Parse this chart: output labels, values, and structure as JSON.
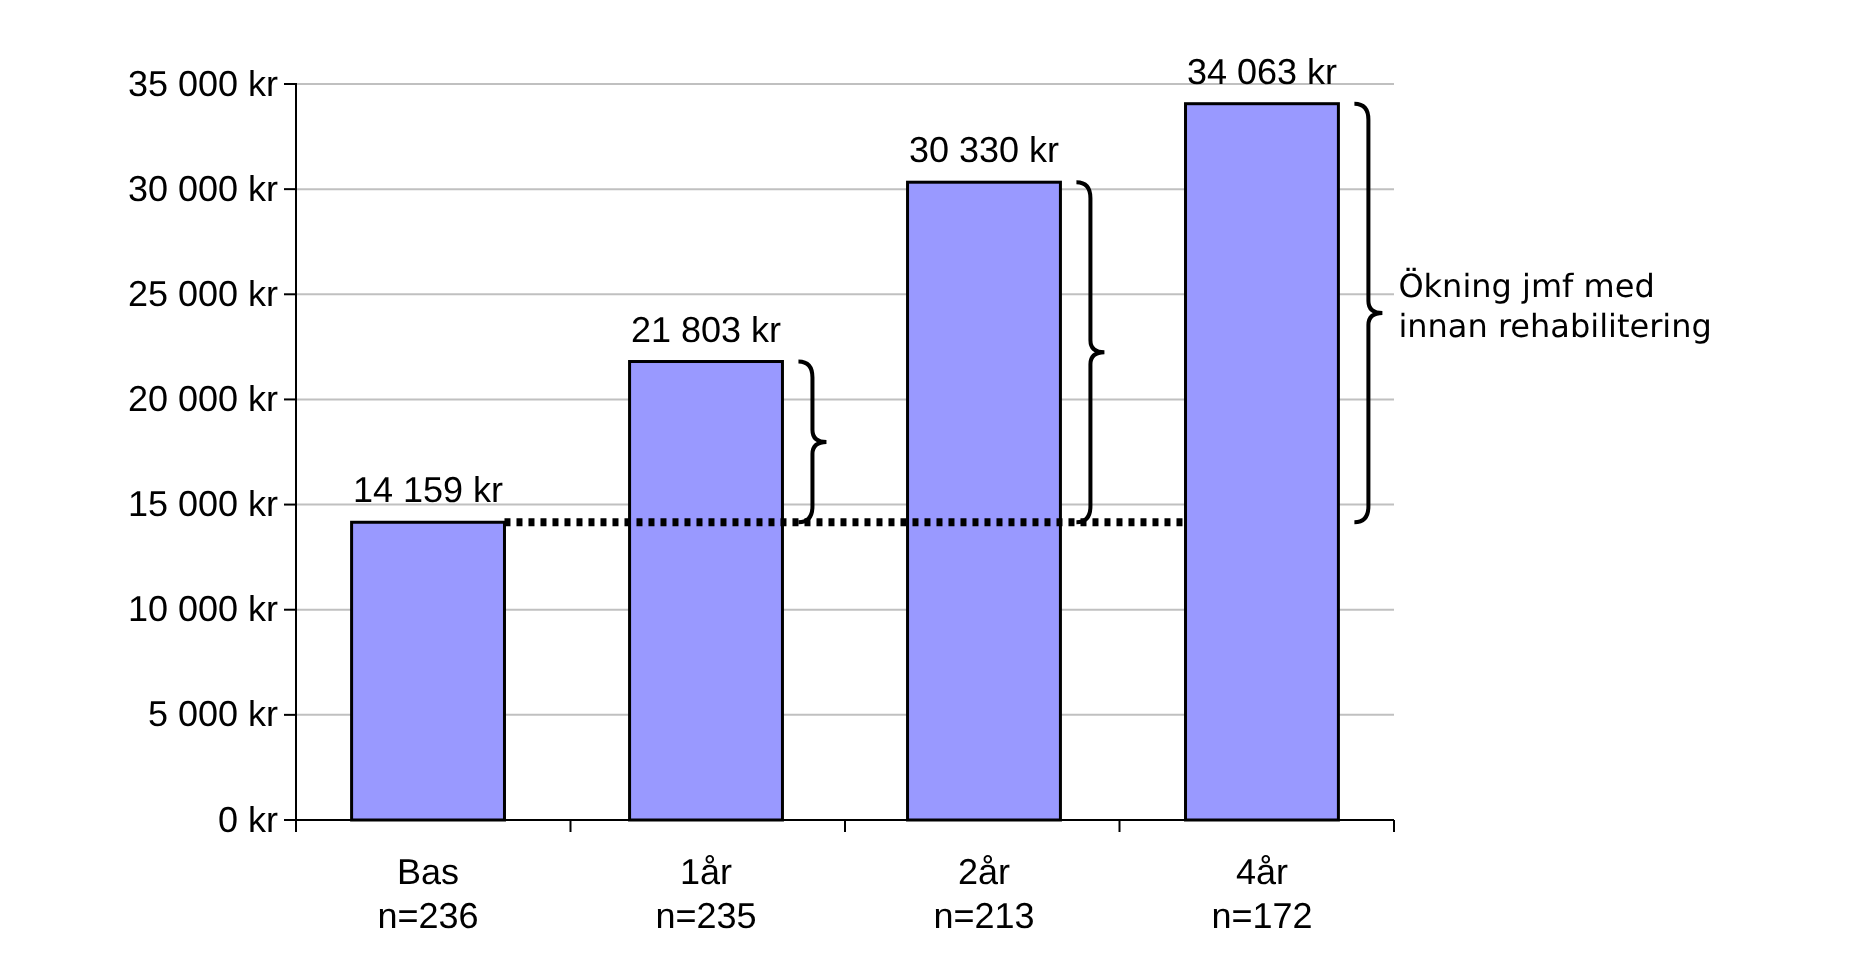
{
  "chart_data": {
    "type": "bar",
    "categories": [
      "Bas\nn=236",
      "1år\nn=235",
      "2år\nn=213",
      "4år\nn=172"
    ],
    "values": [
      14159,
      21803,
      30330,
      34063
    ],
    "value_labels": [
      "14 159 kr",
      "21 803 kr",
      "30 330 kr",
      "34 063 kr"
    ],
    "color": "#9999ff",
    "ylim": [
      0,
      35000
    ],
    "yticks": [
      {
        "value": 0,
        "label": "0 kr"
      },
      {
        "value": 5000,
        "label": "5 000 kr"
      },
      {
        "value": 10000,
        "label": "10 000 kr"
      },
      {
        "value": 15000,
        "label": "15 000 kr"
      },
      {
        "value": 20000,
        "label": "20 000 kr"
      },
      {
        "value": 25000,
        "label": "25 000 kr"
      },
      {
        "value": 30000,
        "label": "30 000 kr"
      },
      {
        "value": 35000,
        "label": "35 000 kr"
      }
    ],
    "grid": "y",
    "ref_lines": [
      {
        "axis": "y",
        "value": 14159,
        "color": "#000000",
        "line_style": "dotted"
      }
    ],
    "annotations": [
      "Ökning jmf med\ninnan rehabilitering"
    ]
  }
}
